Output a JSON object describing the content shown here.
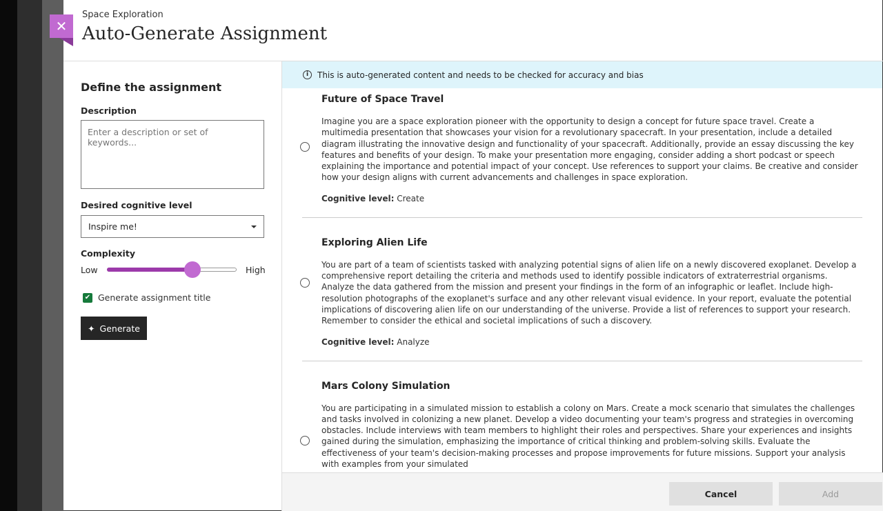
{
  "header": {
    "subtitle": "Space Exploration",
    "title": "Auto-Generate Assignment",
    "close_symbol": "✕"
  },
  "form": {
    "heading": "Define the assignment",
    "description_label": "Description",
    "description_placeholder": "Enter a description or set of keywords...",
    "cognitive_label": "Desired cognitive level",
    "cognitive_value": "Inspire me!",
    "complexity_label": "Complexity",
    "complexity_low": "Low",
    "complexity_high": "High",
    "complexity_value_percent": 66,
    "generate_title_label": "Generate assignment title",
    "generate_title_checked": true,
    "generate_button": "Generate"
  },
  "banner": {
    "text": "This is auto-generated content and needs to be checked for accuracy and bias"
  },
  "cognitive_prefix": "Cognitive level:",
  "results": [
    {
      "title": "Future of Space Travel",
      "body": "Imagine you are a space exploration pioneer with the opportunity to design a concept for future space travel. Create a multimedia presentation that showcases your vision for a revolutionary spacecraft. In your presentation, include a detailed diagram illustrating the innovative design and functionality of your spacecraft. Additionally, provide an essay discussing the key features and benefits of your design. To make your presentation more engaging, consider adding a short podcast or speech explaining the importance and potential impact of your concept. Use references to support your claims. Be creative and consider how your design aligns with current advancements and challenges in space exploration.",
      "level": "Create"
    },
    {
      "title": "Exploring Alien Life",
      "body": "You are part of a team of scientists tasked with analyzing potential signs of alien life on a newly discovered exoplanet. Develop a comprehensive report detailing the criteria and methods used to identify possible indicators of extraterrestrial organisms. Analyze the data gathered from the mission and present your findings in the form of an infographic or leaflet. Include high-resolution photographs of the exoplanet's surface and any other relevant visual evidence. In your report, evaluate the potential implications of discovering alien life on our understanding of the universe. Provide a list of references to support your research. Remember to consider the ethical and societal implications of such a discovery.",
      "level": "Analyze"
    },
    {
      "title": "Mars Colony Simulation",
      "body": "You are participating in a simulated mission to establish a colony on Mars. Create a mock scenario that simulates the challenges and tasks involved in colonizing a new planet. Develop a video documenting your team's progress and strategies in overcoming obstacles. Include interviews with team members to highlight their roles and perspectives. Share your experiences and insights gained during the simulation, emphasizing the importance of critical thinking and problem-solving skills. Evaluate the effectiveness of your team's decision-making processes and propose improvements for future missions. Support your analysis with examples from your simulated",
      "level": ""
    }
  ],
  "footer": {
    "cancel": "Cancel",
    "add": "Add"
  },
  "colors": {
    "accent": "#c16ad1",
    "slider_fill": "#9c3aaa",
    "banner": "#def4fb",
    "checkbox": "#167a3b"
  }
}
